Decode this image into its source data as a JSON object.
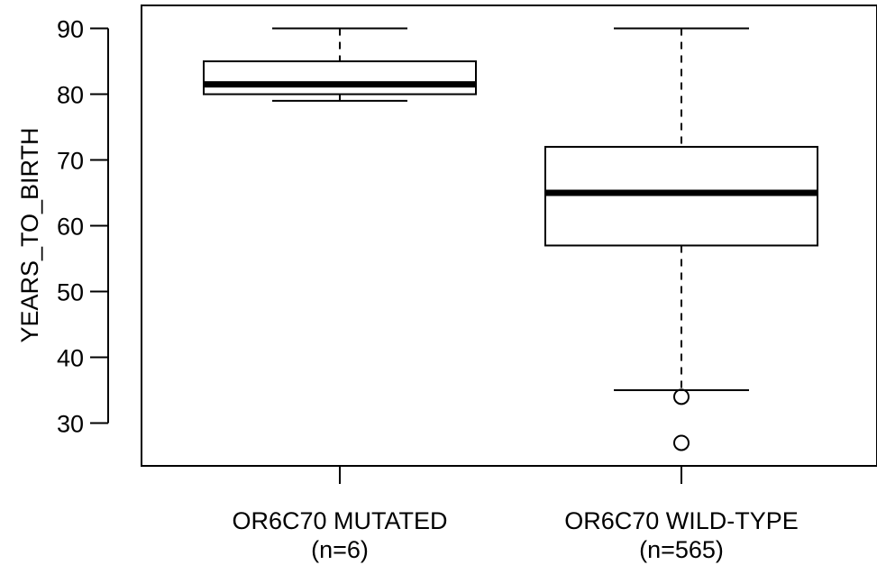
{
  "chart_data": {
    "type": "boxplot",
    "ylabel": "YEARS_TO_BIRTH",
    "ylim": [
      23.5,
      93.5
    ],
    "yticks": [
      30,
      40,
      50,
      60,
      70,
      80,
      90
    ],
    "grid": false,
    "groups": [
      {
        "label": "OR6C70 MUTATED",
        "sublabel": "(n=6)",
        "whisker_low": 79,
        "q1": 80,
        "median": 81.5,
        "q3": 85,
        "whisker_high": 90,
        "outliers": []
      },
      {
        "label": "OR6C70 WILD-TYPE",
        "sublabel": "(n=565)",
        "whisker_low": 35,
        "q1": 57,
        "median": 65,
        "q3": 72,
        "whisker_high": 90,
        "outliers": [
          34,
          27
        ]
      }
    ]
  }
}
